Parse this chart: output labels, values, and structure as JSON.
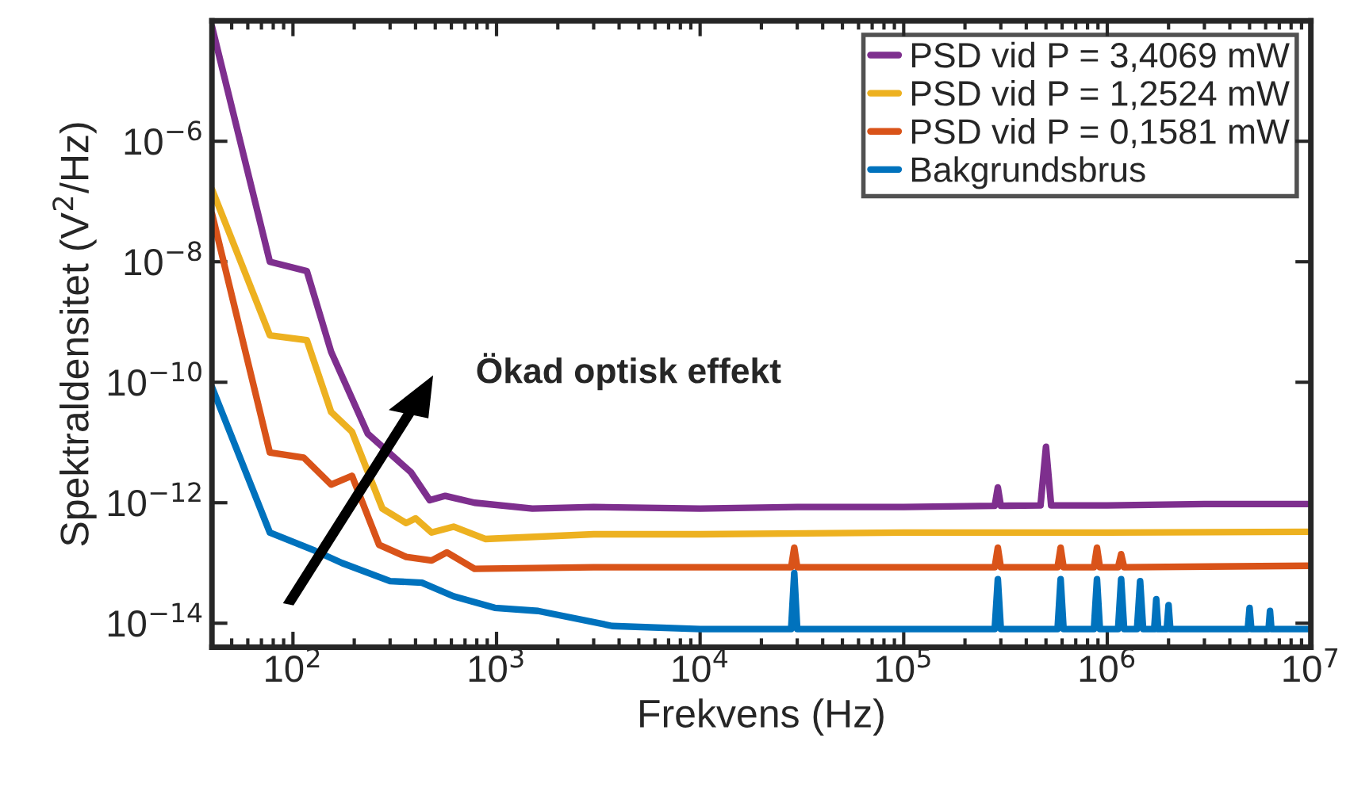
{
  "chart_data": {
    "type": "line",
    "xlabel": "Frekvens (Hz)",
    "ylabel": "Spektraldensitet (V$^{2}$/Hz)",
    "log": "xy",
    "grid": false,
    "legend": "top right",
    "line_style": "solid",
    "marker": "none",
    "xlim": [
      40,
      10000000
    ],
    "ylim": [
      4e-15,
      0.0001
    ],
    "xticks": [
      {
        "value": 100,
        "label": "10$^{2}$"
      },
      {
        "value": 1000,
        "label": "10$^{3}$"
      },
      {
        "value": 10000,
        "label": "10$^{4}$"
      },
      {
        "value": 100000,
        "label": "10$^{5}$"
      },
      {
        "value": 1000000,
        "label": "10$^{6}$"
      },
      {
        "value": 10000000,
        "label": "10$^{7}$"
      }
    ],
    "yticks": [
      {
        "value": 1e-14,
        "label": "10$^{−14}$"
      },
      {
        "value": 1e-12,
        "label": "10$^{−12}$"
      },
      {
        "value": 1e-10,
        "label": "10$^{−10}$"
      },
      {
        "value": 1e-08,
        "label": "10$^{−8}$"
      },
      {
        "value": 1e-06,
        "label": "10$^{−6}$"
      }
    ],
    "annotations": [
      "Ökad optisk effekt"
    ],
    "series": [
      {
        "name": "PSD vid P = 3,4069 mW",
        "color": "#7e2f8e",
        "x": [
          40,
          77,
          117,
          154,
          233,
          380,
          470,
          560,
          780,
          1500,
          3000,
          10000,
          30000,
          100000,
          280000,
          290000,
          300000,
          470000,
          500000,
          530000,
          1000000,
          3000000,
          10000000
        ],
        "values": [
          8e-05,
          1e-08,
          7e-09,
          3.2e-10,
          1.4e-11,
          3.2e-12,
          1.1e-12,
          1.3e-12,
          1e-12,
          8e-13,
          8.5e-13,
          8e-13,
          8.5e-13,
          8.5e-13,
          8.9e-13,
          1.8e-12,
          8.9e-13,
          9e-13,
          8.5e-12,
          9e-13,
          9e-13,
          9.5e-13,
          9.5e-13
        ]
      },
      {
        "name": "PSD vid P = 1,2524 mW",
        "color": "#edb120",
        "x": [
          40,
          77,
          117,
          154,
          195,
          275,
          360,
          400,
          480,
          615,
          880,
          3000,
          10000,
          100000,
          1000000,
          10000000
        ],
        "values": [
          1.6e-07,
          6e-10,
          5e-10,
          3.2e-11,
          1.5e-11,
          8e-13,
          4.6e-13,
          5.5e-13,
          3.2e-13,
          4e-13,
          2.5e-13,
          3e-13,
          3e-13,
          3.2e-13,
          3.2e-13,
          3.3e-13
        ]
      },
      {
        "name": "PSD vid P = 0,1581 mW",
        "color": "#d95319",
        "x": [
          40,
          77,
          113,
          154,
          195,
          265,
          360,
          480,
          570,
          780,
          3000,
          28000,
          29000,
          30000,
          280000,
          290000,
          300000,
          570000,
          590000,
          610000,
          860000,
          890000,
          920000,
          1130000,
          1170000,
          1210000,
          10000000
        ],
        "values": [
          6.3e-08,
          6.8e-12,
          5.6e-12,
          2e-12,
          2.8e-12,
          2e-13,
          1.26e-13,
          1.1e-13,
          1.5e-13,
          8e-14,
          8.5e-14,
          8.5e-14,
          1.8e-13,
          8.5e-14,
          8.5e-14,
          1.8e-13,
          8.5e-14,
          8.5e-14,
          1.8e-13,
          8.5e-14,
          8.5e-14,
          1.8e-13,
          8.5e-14,
          8.5e-14,
          1.4e-13,
          8.5e-14,
          9e-14
        ]
      },
      {
        "name": "Bakgrundsbrus",
        "color": "#0072bd",
        "x": [
          40,
          77,
          128,
          174,
          300,
          430,
          615,
          980,
          1600,
          3700,
          10000,
          28000,
          29000,
          30000,
          100000,
          280000,
          290000,
          300000,
          570000,
          590000,
          610000,
          860000,
          890000,
          920000,
          1130000,
          1170000,
          1210000,
          1400000,
          1450000,
          1500000,
          1700000,
          1740000,
          1780000,
          1960000,
          2000000,
          2040000,
          4900000,
          5000000,
          5100000,
          6200000,
          6300000,
          6400000,
          10000000
        ],
        "values": [
          8.3e-11,
          3.2e-13,
          1.6e-13,
          1e-13,
          5e-14,
          4.7e-14,
          2.8e-14,
          1.8e-14,
          1.6e-14,
          9e-15,
          8e-15,
          8e-15,
          6.8e-14,
          8e-15,
          8e-15,
          8e-15,
          5.4e-14,
          8e-15,
          8e-15,
          5.4e-14,
          8e-15,
          8e-15,
          5.4e-14,
          8e-15,
          8e-15,
          5.4e-14,
          8e-15,
          8e-15,
          5e-14,
          8e-15,
          8e-15,
          2.5e-14,
          8e-15,
          8e-15,
          2e-14,
          8e-15,
          8e-15,
          1.8e-14,
          8e-15,
          8e-15,
          1.6e-14,
          8e-15,
          8e-15
        ]
      }
    ]
  }
}
